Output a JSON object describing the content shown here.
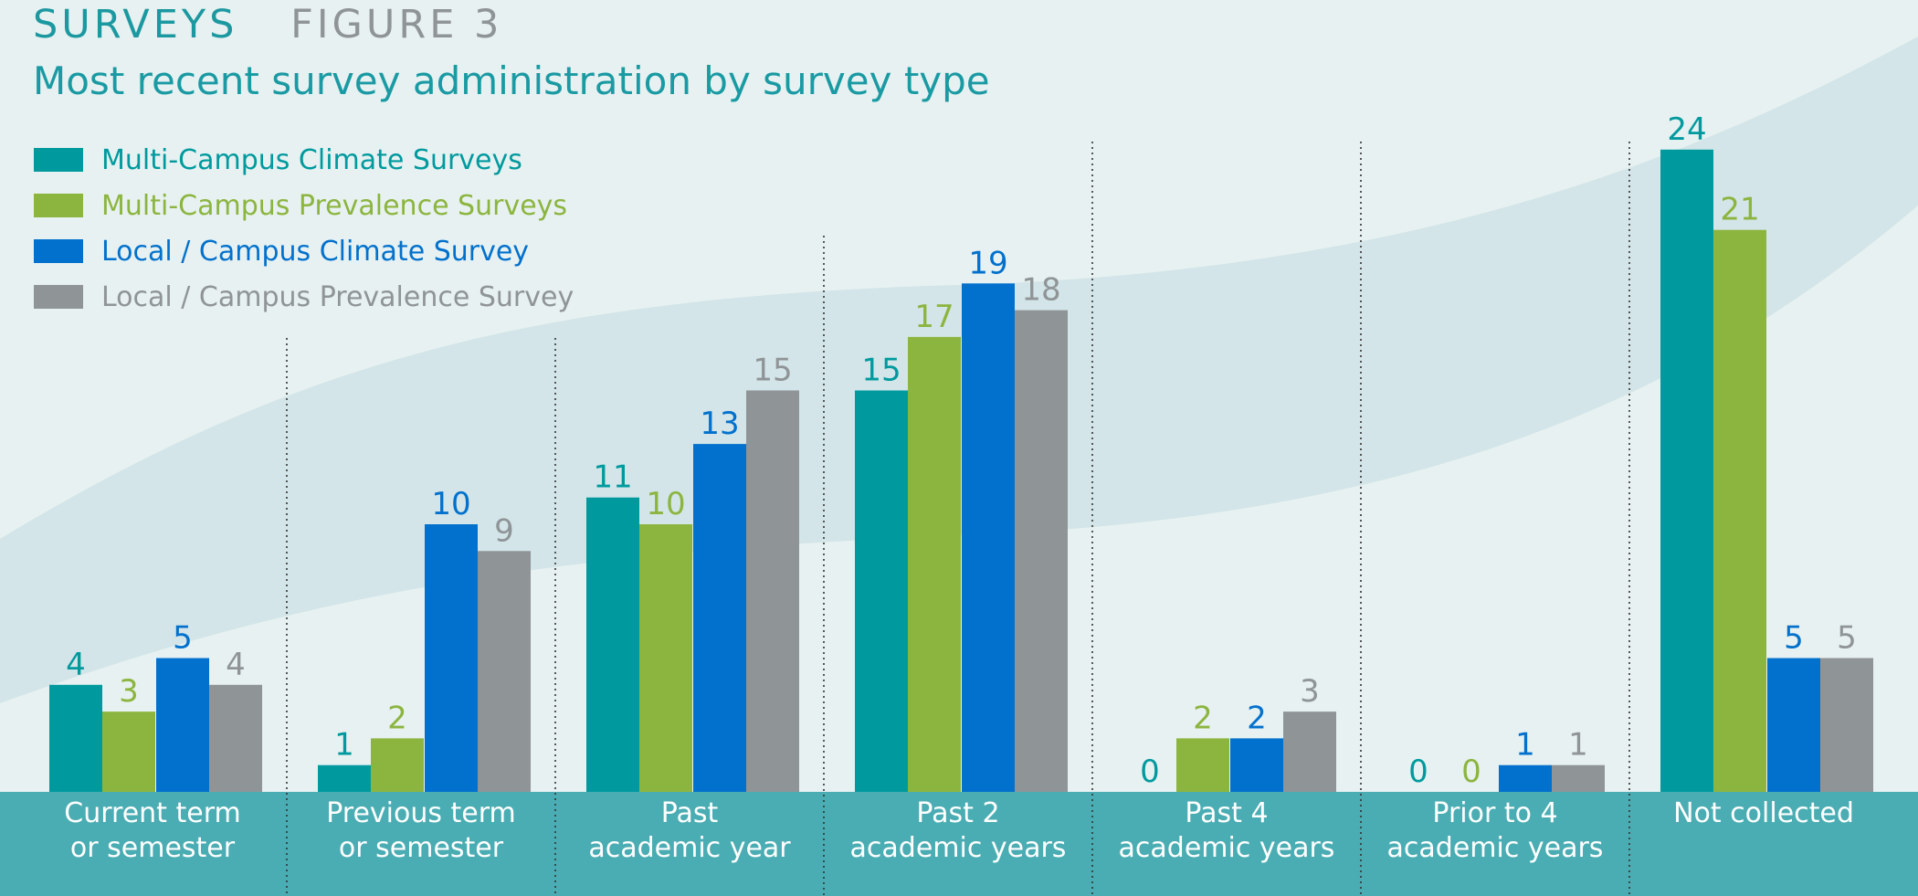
{
  "header": {
    "section": "SURVEYS",
    "figure": "FIGURE 3",
    "title": "Most recent survey administration by survey type"
  },
  "colors": {
    "background": "#e7f1f1",
    "band": "#d3e5e8",
    "footer_bar": "#4aadb3",
    "axis_text": "#ffffff",
    "divider": "#333333"
  },
  "chart_data": {
    "type": "bar",
    "title": "Most recent survey administration by survey type",
    "xlabel": "",
    "ylabel": "",
    "ylim": [
      0,
      24
    ],
    "grid": false,
    "legend_position": "top-left",
    "categories": [
      "Current term\nor semester",
      "Previous term\nor semester",
      "Past\nacademic year",
      "Past 2\nacademic years",
      "Past 4\nacademic years",
      "Prior to 4\nacademic years",
      "Not collected"
    ],
    "series": [
      {
        "name": "Multi-Campus Climate Surveys",
        "color": "#009a9e",
        "values": [
          4,
          1,
          11,
          15,
          0,
          0,
          24
        ]
      },
      {
        "name": "Multi-Campus Prevalence Surveys",
        "color": "#8cb53f",
        "values": [
          3,
          2,
          10,
          17,
          2,
          0,
          21
        ]
      },
      {
        "name": "Local / Campus Climate Survey",
        "color": "#0271cd",
        "values": [
          5,
          10,
          13,
          19,
          2,
          1,
          5
        ]
      },
      {
        "name": "Local / Campus Prevalence Survey",
        "color": "#8f9497",
        "values": [
          4,
          9,
          15,
          18,
          3,
          1,
          5
        ]
      }
    ]
  }
}
